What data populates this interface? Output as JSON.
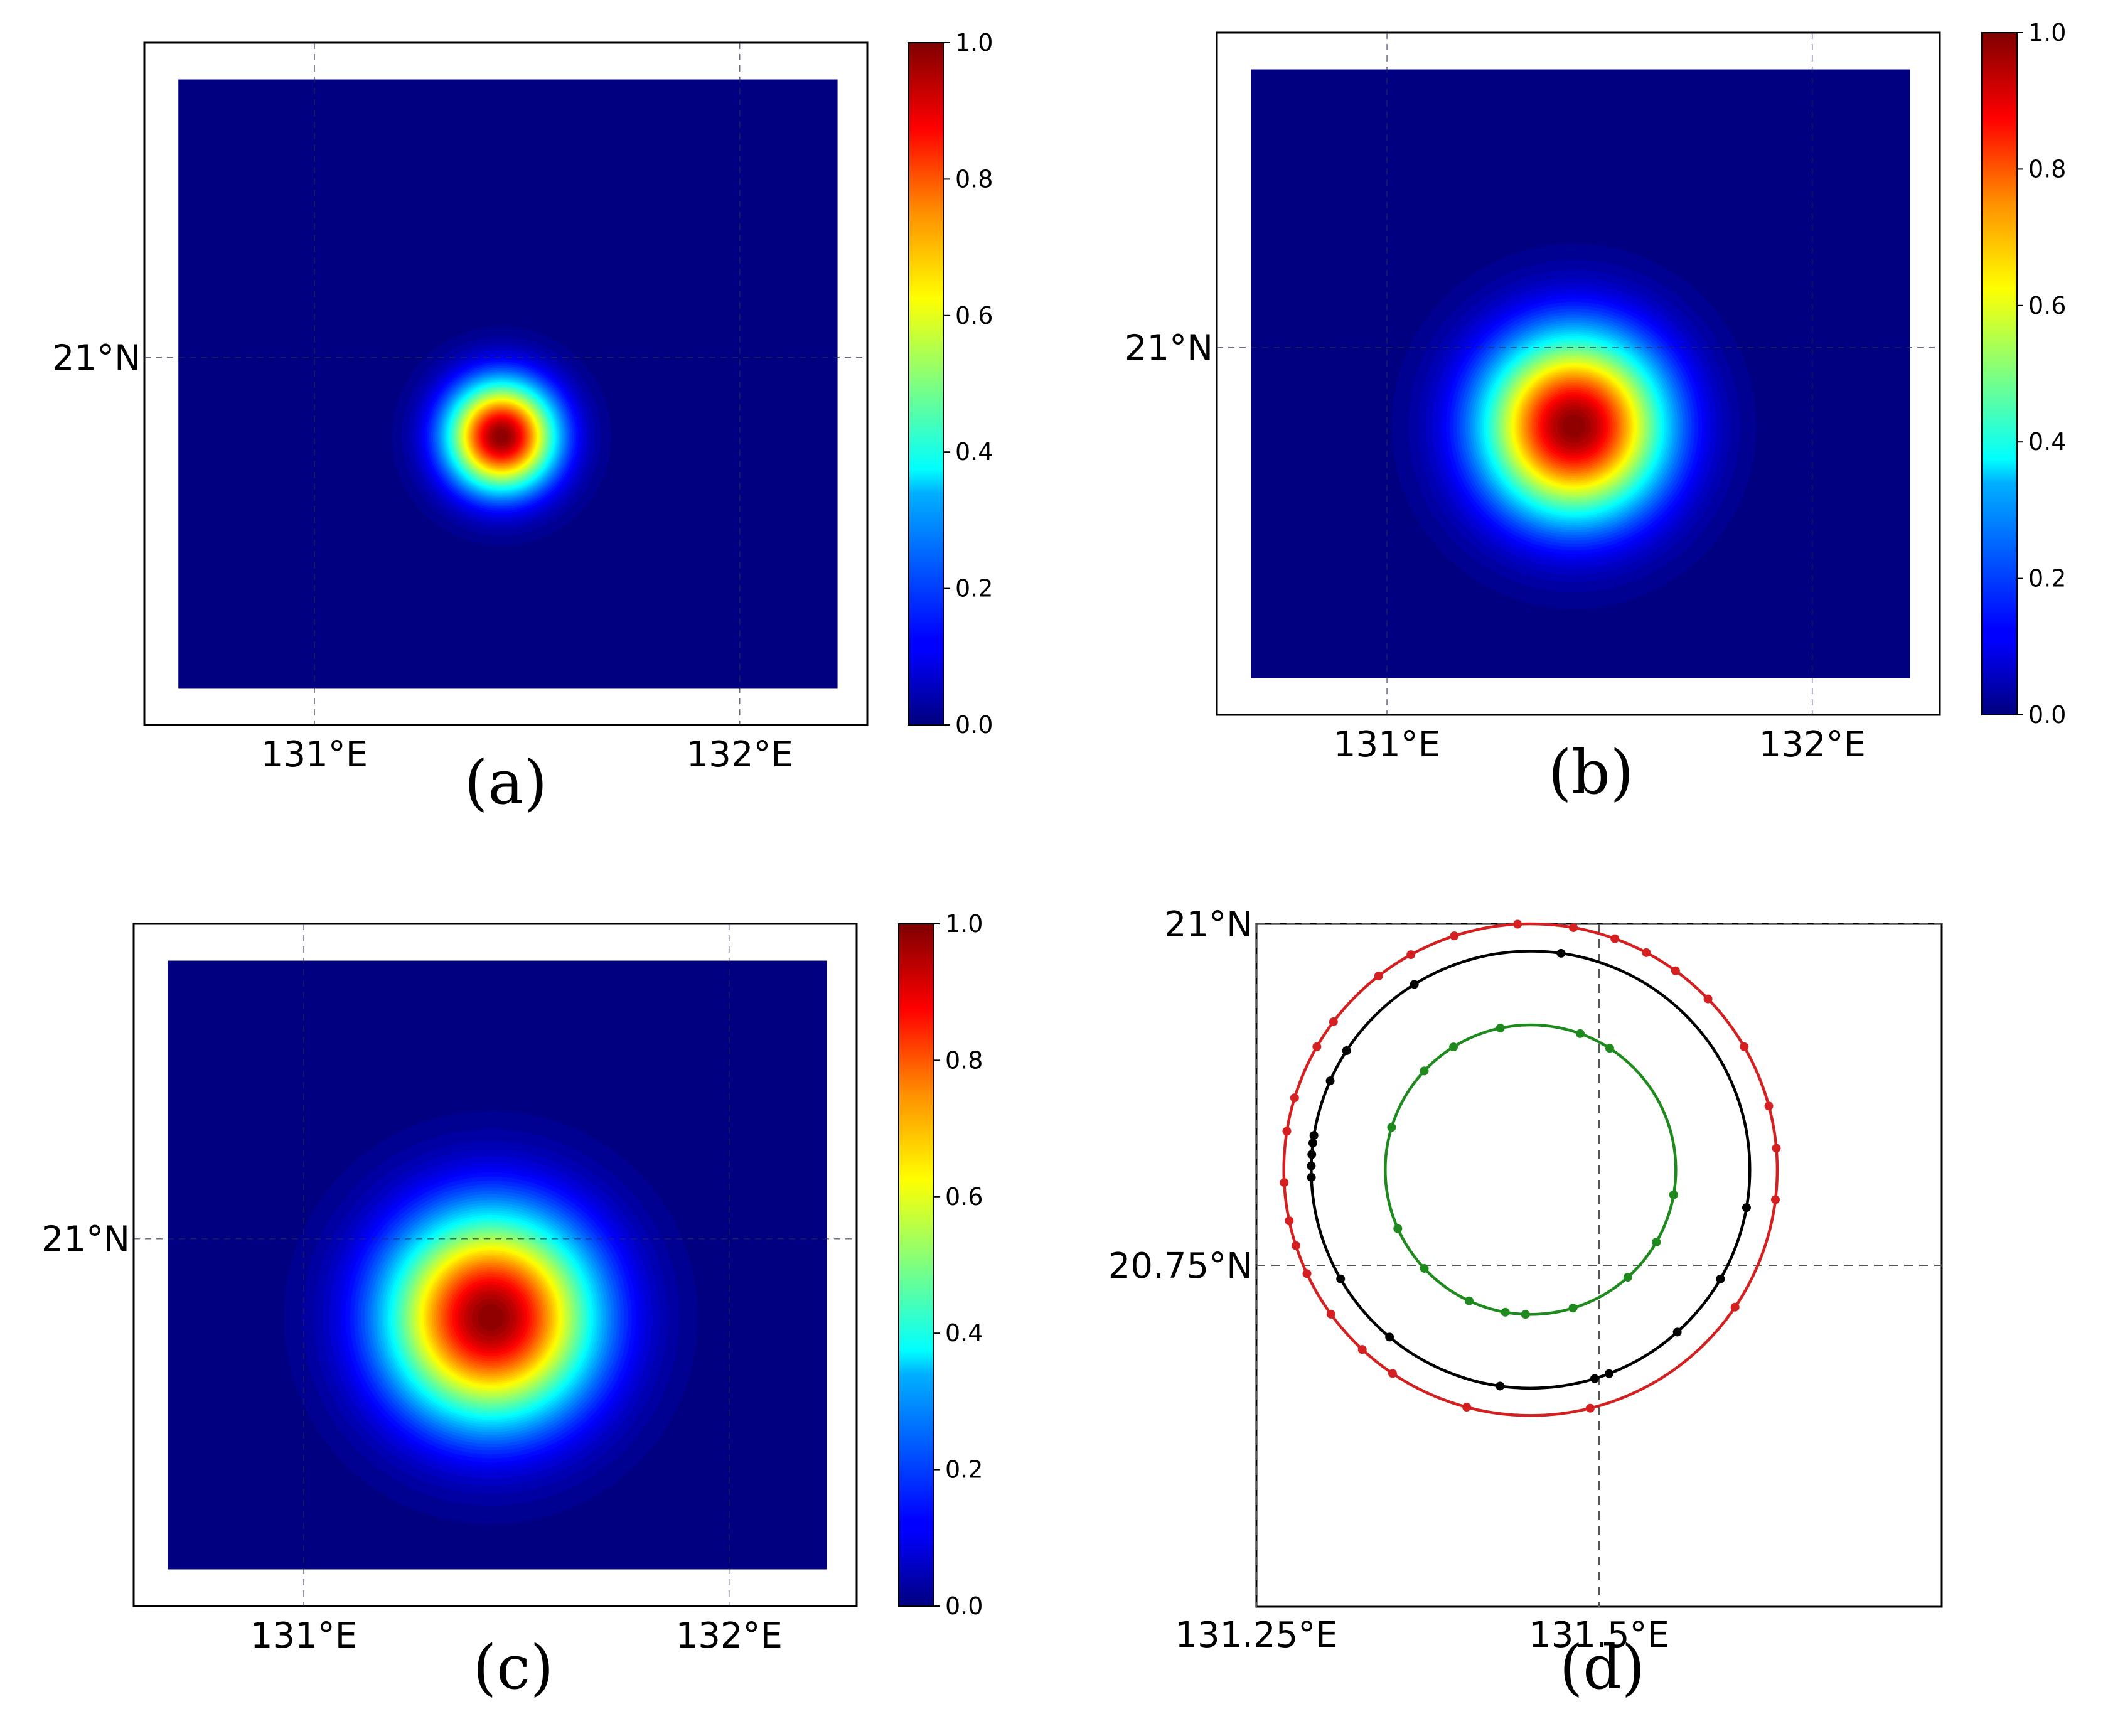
{
  "figure": {
    "panels": [
      {
        "id": "a",
        "label": "(a)"
      },
      {
        "id": "b",
        "label": "(b)"
      },
      {
        "id": "c",
        "label": "(c)"
      },
      {
        "id": "d",
        "label": "(d)"
      }
    ]
  },
  "chart_data": [
    {
      "panel": "(a)",
      "type": "heatmap",
      "colormap": "jet",
      "colorbar": {
        "min": 0.0,
        "max": 1.0,
        "ticks": [
          "0.0",
          "0.2",
          "0.4",
          "0.6",
          "0.8",
          "1.0"
        ]
      },
      "x_ticks": [
        {
          "value": 131.0,
          "label": "131°E"
        },
        {
          "value": 132.0,
          "label": "132°E"
        }
      ],
      "y_ticks": [
        {
          "value": 21.0,
          "label": "21°N"
        }
      ],
      "xlim": [
        130.6,
        132.3
      ],
      "ylim": [
        20.3,
        21.6
      ],
      "field_extent": {
        "lon": [
          130.68,
          132.23
        ],
        "lat": [
          20.37,
          21.53
        ]
      },
      "peak": {
        "lon": 131.44,
        "lat": 20.85,
        "value": 1.0
      },
      "sigma_deg": 0.09
    },
    {
      "panel": "(b)",
      "type": "heatmap",
      "colormap": "jet",
      "colorbar": {
        "min": 0.0,
        "max": 1.0,
        "ticks": [
          "0.0",
          "0.2",
          "0.4",
          "0.6",
          "0.8",
          "1.0"
        ]
      },
      "x_ticks": [
        {
          "value": 131.0,
          "label": "131°E"
        },
        {
          "value": 132.0,
          "label": "132°E"
        }
      ],
      "y_ticks": [
        {
          "value": 21.0,
          "label": "21°N"
        }
      ],
      "xlim": [
        130.6,
        132.3
      ],
      "ylim": [
        20.3,
        21.6
      ],
      "field_extent": {
        "lon": [
          130.68,
          132.23
        ],
        "lat": [
          20.37,
          21.53
        ]
      },
      "peak": {
        "lon": 131.44,
        "lat": 20.85,
        "value": 1.0
      },
      "sigma_deg": 0.15
    },
    {
      "panel": "(c)",
      "type": "heatmap",
      "colormap": "jet",
      "colorbar": {
        "min": 0.0,
        "max": 1.0,
        "ticks": [
          "0.0",
          "0.2",
          "0.4",
          "0.6",
          "0.8",
          "1.0"
        ]
      },
      "x_ticks": [
        {
          "value": 131.0,
          "label": "131°E"
        },
        {
          "value": 132.0,
          "label": "132°E"
        }
      ],
      "y_ticks": [
        {
          "value": 21.0,
          "label": "21°N"
        }
      ],
      "xlim": [
        130.6,
        132.3
      ],
      "ylim": [
        20.3,
        21.6
      ],
      "field_extent": {
        "lon": [
          130.68,
          132.23
        ],
        "lat": [
          20.37,
          21.53
        ]
      },
      "peak": {
        "lon": 131.44,
        "lat": 20.85,
        "value": 1.0
      },
      "sigma_deg": 0.17
    },
    {
      "panel": "(d)",
      "type": "scatter",
      "x_ticks": [
        {
          "value": 131.25,
          "label": "131.25°E"
        },
        {
          "value": 131.5,
          "label": "131.5°E"
        }
      ],
      "y_ticks": [
        {
          "value": 21.0,
          "label": "21°N"
        },
        {
          "value": 20.75,
          "label": "20.75°N"
        }
      ],
      "xlim": [
        131.25,
        131.75
      ],
      "ylim": [
        20.5,
        21.0
      ],
      "grid": true,
      "circles": [
        {
          "color": "#d42020",
          "center": [
            131.45,
            20.82
          ],
          "radius": 0.18
        },
        {
          "color": "#000000",
          "center": [
            131.45,
            20.82
          ],
          "radius": 0.16
        },
        {
          "color": "#1e8a1e",
          "center": [
            131.45,
            20.82
          ],
          "radius": 0.106
        }
      ],
      "point_angles_deg": {
        "red": [
          93,
          108,
          80,
          62,
          54,
          119,
          128,
          143,
          150,
          163,
          171,
          183,
          192,
          205,
          216,
          227,
          236,
          255,
          284,
          326,
          353,
          5,
          15,
          30,
          44,
          70,
          198
        ],
        "black": [
          82,
          122,
          147,
          156,
          171,
          173,
          176,
          179,
          182,
          210,
          230,
          262,
          287,
          291,
          312,
          330,
          350
        ],
        "green": [
          102,
          122,
          137,
          163,
          204,
          223,
          245,
          260,
          268,
          287,
          312,
          330,
          350,
          70,
          57
        ]
      }
    }
  ]
}
